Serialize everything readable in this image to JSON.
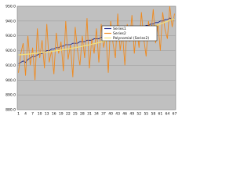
{
  "chart_data": {
    "type": "line",
    "categories": [
      "1",
      null,
      null,
      "4",
      null,
      null,
      "7",
      null,
      null,
      "10",
      null,
      null,
      "13",
      null,
      null,
      "16",
      null,
      null,
      "19",
      null,
      null,
      "22",
      null,
      null,
      "25",
      null,
      null,
      "28",
      null,
      null,
      "31",
      null,
      null,
      "34",
      null,
      null,
      "37",
      null,
      null,
      "40",
      null,
      null,
      "43",
      null,
      null,
      "46",
      null,
      null,
      "49",
      null,
      null,
      "52",
      null,
      null,
      "55",
      null,
      null,
      "58",
      null,
      null,
      "61",
      null,
      null,
      "64",
      null,
      null,
      "67"
    ],
    "series": [
      {
        "name": "Series1",
        "color": "#1f2a8c",
        "values": [
          911,
          912,
          913,
          912,
          914,
          915,
          916,
          916,
          917,
          918,
          918,
          919,
          920,
          920,
          921,
          921,
          922,
          922,
          923,
          923,
          924,
          924,
          924,
          925,
          925,
          925,
          926,
          926,
          926,
          927,
          927,
          927,
          928,
          928,
          928,
          929,
          929,
          929,
          930,
          930,
          931,
          931,
          931,
          932,
          932,
          933,
          933,
          934,
          934,
          935,
          935,
          935,
          936,
          936,
          937,
          937,
          938,
          938,
          939,
          939,
          940,
          940,
          941,
          941,
          942,
          941,
          942
        ]
      },
      {
        "name": "Series2",
        "color": "#f08a1e",
        "values": [
          905,
          918,
          925,
          903,
          930,
          910,
          922,
          900,
          935,
          915,
          927,
          908,
          938,
          912,
          920,
          904,
          932,
          918,
          926,
          906,
          940,
          914,
          924,
          902,
          936,
          920,
          910,
          930,
          915,
          942,
          908,
          928,
          918,
          935,
          912,
          938,
          922,
          930,
          905,
          940,
          925,
          915,
          945,
          920,
          932,
          910,
          938,
          926,
          944,
          918,
          935,
          922,
          946,
          928,
          916,
          940,
          930,
          948,
          925,
          938,
          920,
          946,
          934,
          928,
          950,
          936,
          945
        ]
      },
      {
        "name": "Polynomial (Series2)",
        "color": "#f5e27a",
        "values": [
          917.1,
          917.2,
          917.3,
          917.5,
          917.6,
          917.7,
          917.9,
          918.1,
          918.2,
          918.4,
          918.6,
          918.8,
          919.0,
          919.2,
          919.4,
          919.6,
          919.9,
          920.1,
          920.3,
          920.6,
          920.9,
          921.1,
          921.4,
          921.7,
          922.0,
          922.3,
          922.6,
          922.9,
          923.3,
          923.6,
          923.9,
          924.3,
          924.7,
          925.0,
          925.4,
          925.8,
          926.2,
          926.6,
          927.0,
          927.4,
          927.8,
          928.3,
          928.7,
          929.1,
          929.6,
          930.1,
          930.5,
          931.0,
          931.5,
          932.0,
          932.5,
          933.0,
          933.5,
          934.1,
          934.6,
          935.1,
          935.7,
          936.2,
          936.8,
          937.4,
          938.0,
          938.6,
          939.2,
          939.8,
          940.4,
          941.0,
          941.7
        ]
      }
    ],
    "ylim": [
      880,
      950
    ],
    "yticks": [
      {
        "value": 880,
        "label": "880.0"
      },
      {
        "value": 890,
        "label": "890.0"
      },
      {
        "value": 900,
        "label": "900.0"
      },
      {
        "value": 910,
        "label": "910.0"
      },
      {
        "value": 920,
        "label": "920.0"
      },
      {
        "value": 930,
        "label": "930.0"
      },
      {
        "value": 940,
        "label": "940.0"
      },
      {
        "value": 950,
        "label": "950.0"
      }
    ],
    "grid": true,
    "legend": "upper-right",
    "background": "#c0c0c0"
  }
}
